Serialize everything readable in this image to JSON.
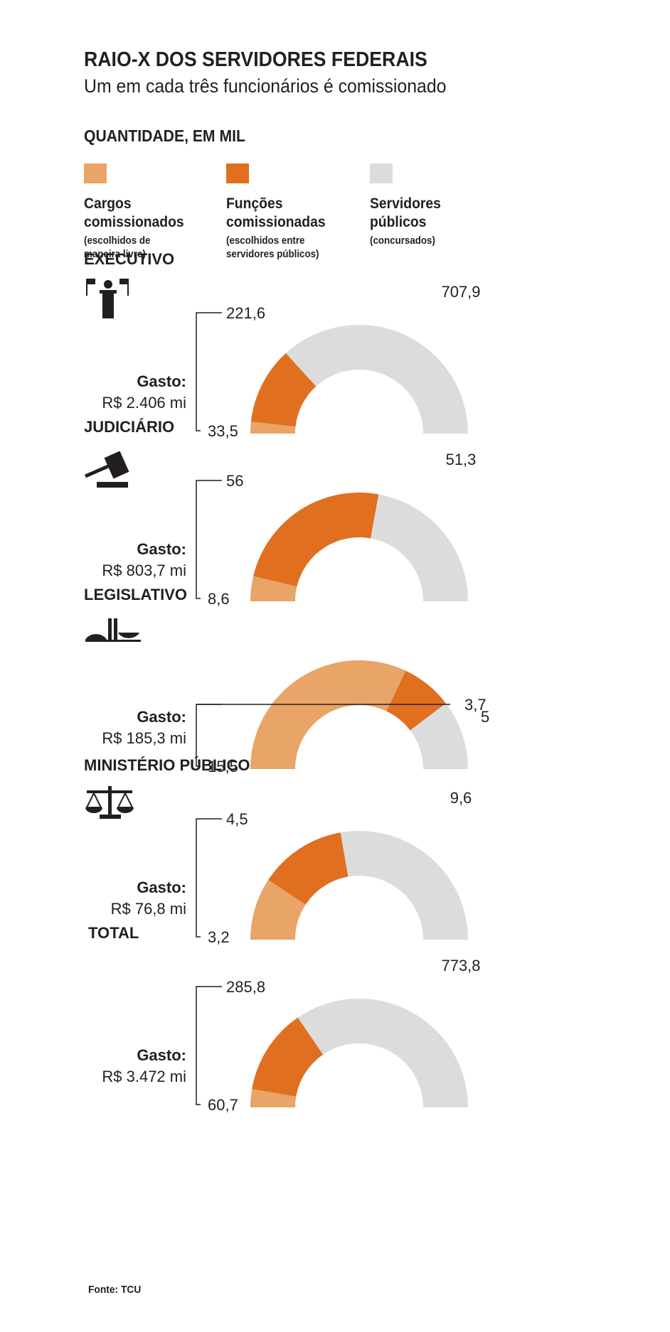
{
  "title": "RAIO-X DOS SERVIDORES FEDERAIS",
  "subtitle": "Um em cada três funcionários é comissionado",
  "quantity_label": "QUANTIDADE, EM MIL",
  "legend": [
    {
      "title_line1": "Cargos",
      "title_line2": "comissionados",
      "note_line1": "(escolhidos de",
      "note_line2": "maneira livre)",
      "color": "#e9a468"
    },
    {
      "title_line1": "Funções",
      "title_line2": "comissionadas",
      "note_line1": "(escolhidos entre",
      "note_line2": "servidores públicos)",
      "color": "#e07020"
    },
    {
      "title_line1": "Servidores",
      "title_line2": "públicos",
      "note_line1": "(concursados)",
      "note_line2": "",
      "color": "#dddcdc"
    }
  ],
  "gasto_label": "Gasto:",
  "footer": "Fonte: TCU",
  "icons": [
    "podium-icon",
    "gavel-icon",
    "congress-icon",
    "scales-icon"
  ],
  "chart_data": [
    {
      "type": "pie",
      "name": "EXECUTIVO",
      "gasto": "R$ 2.406 mi",
      "categories": [
        "Cargos comissionados",
        "Funções comissionadas",
        "Servidores públicos"
      ],
      "values": [
        33.5,
        221.6,
        707.9
      ],
      "value_labels": [
        "33,5",
        "221,6",
        "707,9"
      ],
      "colors": [
        "#e9a468",
        "#e07020",
        "#dddcdc"
      ]
    },
    {
      "type": "pie",
      "name": "JUDICIÁRIO",
      "gasto": "R$ 803,7 mi",
      "categories": [
        "Cargos comissionados",
        "Funções comissionadas",
        "Servidores públicos"
      ],
      "values": [
        8.6,
        56,
        51.3
      ],
      "value_labels": [
        "8,6",
        "56",
        "51,3"
      ],
      "colors": [
        "#e9a468",
        "#e07020",
        "#dddcdc"
      ]
    },
    {
      "type": "pie",
      "name": "LEGISLATIVO",
      "gasto": "R$ 185,3 mi",
      "categories": [
        "Cargos comissionados",
        "Funções comissionadas",
        "Servidores públicos"
      ],
      "values": [
        15.5,
        3.7,
        5
      ],
      "value_labels": [
        "15,5",
        "3,7",
        "5"
      ],
      "colors": [
        "#e9a468",
        "#e07020",
        "#dddcdc"
      ]
    },
    {
      "type": "pie",
      "name": "MINISTÉRIO PÚBLICO",
      "gasto": "R$ 76,8 mi",
      "categories": [
        "Cargos comissionados",
        "Funções comissionadas",
        "Servidores públicos"
      ],
      "values": [
        3.2,
        4.5,
        9.6
      ],
      "value_labels": [
        "3,2",
        "4,5",
        "9,6"
      ],
      "colors": [
        "#e9a468",
        "#e07020",
        "#dddcdc"
      ]
    },
    {
      "type": "pie",
      "name": "TOTAL",
      "gasto": "R$ 3.472 mi",
      "categories": [
        "Cargos comissionados",
        "Funções comissionadas",
        "Servidores públicos"
      ],
      "values": [
        60.7,
        285.8,
        773.8
      ],
      "value_labels": [
        "60,7",
        "285,8",
        "773,8"
      ],
      "colors": [
        "#e9a468",
        "#e07020",
        "#dddcdc"
      ]
    }
  ]
}
